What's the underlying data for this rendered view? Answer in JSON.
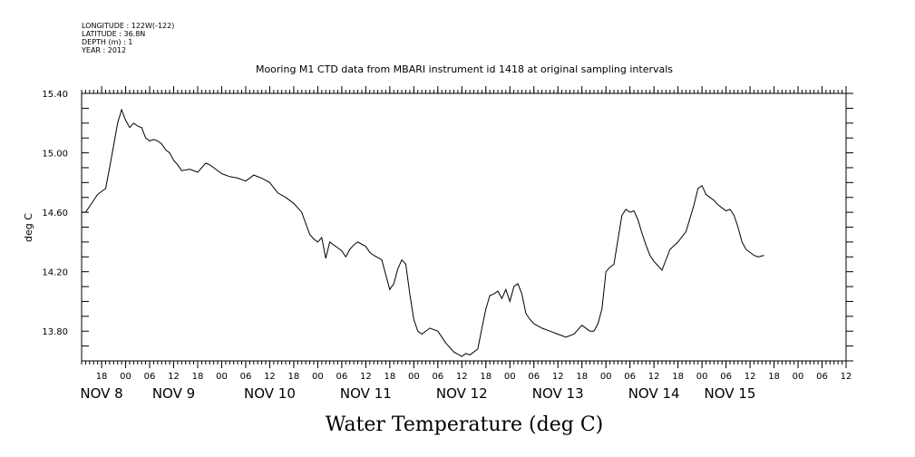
{
  "metadata": [
    "LONGITUDE : 122W(-122)",
    "LATITUDE : 36.8N",
    "DEPTH (m) : 1",
    "YEAR : 2012"
  ],
  "chart_data": {
    "type": "line",
    "title": "Mooring M1 CTD data from MBARI instrument id 1418 at original sampling intervals",
    "xlabel": "Water Temperature (deg C)",
    "ylabel": "deg C",
    "ylim": [
      13.6,
      15.4
    ],
    "yticks": [
      "15.40",
      "15.00",
      "14.60",
      "14.20",
      "13.80"
    ],
    "ytick_values": [
      15.4,
      15.0,
      14.6,
      14.2,
      13.8
    ],
    "x_unit": "hours since Nov 8 00:00 2012",
    "xlim": [
      -11,
      180
    ],
    "hour_ticks": [
      {
        "h": -6,
        "label": "18"
      },
      {
        "h": 0,
        "label": "00"
      },
      {
        "h": 6,
        "label": "06"
      },
      {
        "h": 12,
        "label": "12"
      },
      {
        "h": 18,
        "label": "18"
      },
      {
        "h": 24,
        "label": "00"
      },
      {
        "h": 30,
        "label": "06"
      },
      {
        "h": 36,
        "label": "12"
      },
      {
        "h": 42,
        "label": "18"
      },
      {
        "h": 48,
        "label": "00"
      },
      {
        "h": 54,
        "label": "06"
      },
      {
        "h": 60,
        "label": "12"
      },
      {
        "h": 66,
        "label": "18"
      },
      {
        "h": 72,
        "label": "00"
      },
      {
        "h": 78,
        "label": "06"
      },
      {
        "h": 84,
        "label": "12"
      },
      {
        "h": 90,
        "label": "18"
      },
      {
        "h": 96,
        "label": "00"
      },
      {
        "h": 102,
        "label": "06"
      },
      {
        "h": 108,
        "label": "12"
      },
      {
        "h": 114,
        "label": "18"
      },
      {
        "h": 120,
        "label": "00"
      },
      {
        "h": 126,
        "label": "06"
      },
      {
        "h": 132,
        "label": "12"
      },
      {
        "h": 138,
        "label": "18"
      },
      {
        "h": 144,
        "label": "00"
      },
      {
        "h": 150,
        "label": "06"
      },
      {
        "h": 156,
        "label": "12"
      },
      {
        "h": 162,
        "label": "18"
      },
      {
        "h": 168,
        "label": "00"
      },
      {
        "h": 174,
        "label": "06"
      },
      {
        "h": 180,
        "label": "12"
      }
    ],
    "day_labels": [
      {
        "h": -6,
        "label": "NOV  8"
      },
      {
        "h": 12,
        "label": "NOV  9"
      },
      {
        "h": 36,
        "label": "NOV 10"
      },
      {
        "h": 60,
        "label": "NOV 11"
      },
      {
        "h": 84,
        "label": "NOV 12"
      },
      {
        "h": 108,
        "label": "NOV 13"
      },
      {
        "h": 132,
        "label": "NOV 14"
      },
      {
        "h": 151,
        "label": "NOV 15"
      }
    ],
    "series": [
      {
        "name": "",
        "x": [
          -11,
          -10,
          -8,
          -7,
          -5,
          -4,
          -3,
          -2,
          -1,
          0,
          1,
          2,
          3,
          4,
          5,
          6,
          7,
          8,
          9,
          10,
          11,
          12,
          13,
          14,
          16,
          18,
          20,
          21,
          22,
          24,
          26,
          28,
          30,
          32,
          34,
          36,
          38,
          40,
          42,
          44,
          46,
          47,
          48,
          49,
          50,
          51,
          52,
          53,
          54,
          55,
          56,
          57,
          58,
          60,
          61,
          62,
          64,
          66,
          67,
          68,
          69,
          70,
          71,
          72,
          73,
          74,
          76,
          78,
          80,
          82,
          84,
          85,
          86,
          87,
          88,
          89,
          90,
          91,
          92,
          93,
          94,
          95,
          96,
          97,
          98,
          99,
          100,
          101,
          102,
          104,
          106,
          108,
          110,
          112,
          114,
          116,
          117,
          118,
          119,
          120,
          121,
          122,
          124,
          125,
          126,
          127,
          128,
          129,
          130,
          131,
          132,
          134,
          136,
          138,
          140,
          142,
          143,
          144,
          145,
          146,
          147,
          148,
          150,
          151,
          152,
          153,
          154,
          155,
          156,
          157,
          158,
          159.5
        ],
        "values": [
          14.6,
          14.6,
          14.68,
          14.72,
          14.76,
          14.9,
          15.05,
          15.2,
          15.29,
          15.22,
          15.17,
          15.2,
          15.18,
          15.17,
          15.1,
          15.08,
          15.09,
          15.08,
          15.06,
          15.02,
          15.0,
          14.95,
          14.92,
          14.88,
          14.89,
          14.87,
          14.93,
          14.92,
          14.9,
          14.86,
          14.84,
          14.83,
          14.81,
          14.85,
          14.83,
          14.8,
          14.73,
          14.7,
          14.66,
          14.6,
          14.45,
          14.42,
          14.4,
          14.43,
          14.29,
          14.4,
          14.38,
          14.36,
          14.34,
          14.3,
          14.35,
          14.38,
          14.4,
          14.37,
          14.33,
          14.31,
          14.28,
          14.08,
          14.12,
          14.22,
          14.28,
          14.25,
          14.05,
          13.88,
          13.8,
          13.78,
          13.82,
          13.8,
          13.72,
          13.66,
          13.63,
          13.65,
          13.64,
          13.66,
          13.68,
          13.82,
          13.95,
          14.04,
          14.05,
          14.07,
          14.02,
          14.08,
          14.0,
          14.1,
          14.12,
          14.05,
          13.92,
          13.88,
          13.85,
          13.82,
          13.8,
          13.78,
          13.76,
          13.78,
          13.84,
          13.8,
          13.8,
          13.85,
          13.95,
          14.2,
          14.23,
          14.25,
          14.58,
          14.62,
          14.6,
          14.61,
          14.55,
          14.46,
          14.38,
          14.31,
          14.27,
          14.21,
          14.35,
          14.4,
          14.47,
          14.65,
          14.76,
          14.78,
          14.72,
          14.7,
          14.68,
          14.65,
          14.61,
          14.62,
          14.58,
          14.5,
          14.4,
          14.35,
          14.33,
          14.31,
          14.3,
          14.31
        ]
      }
    ]
  }
}
